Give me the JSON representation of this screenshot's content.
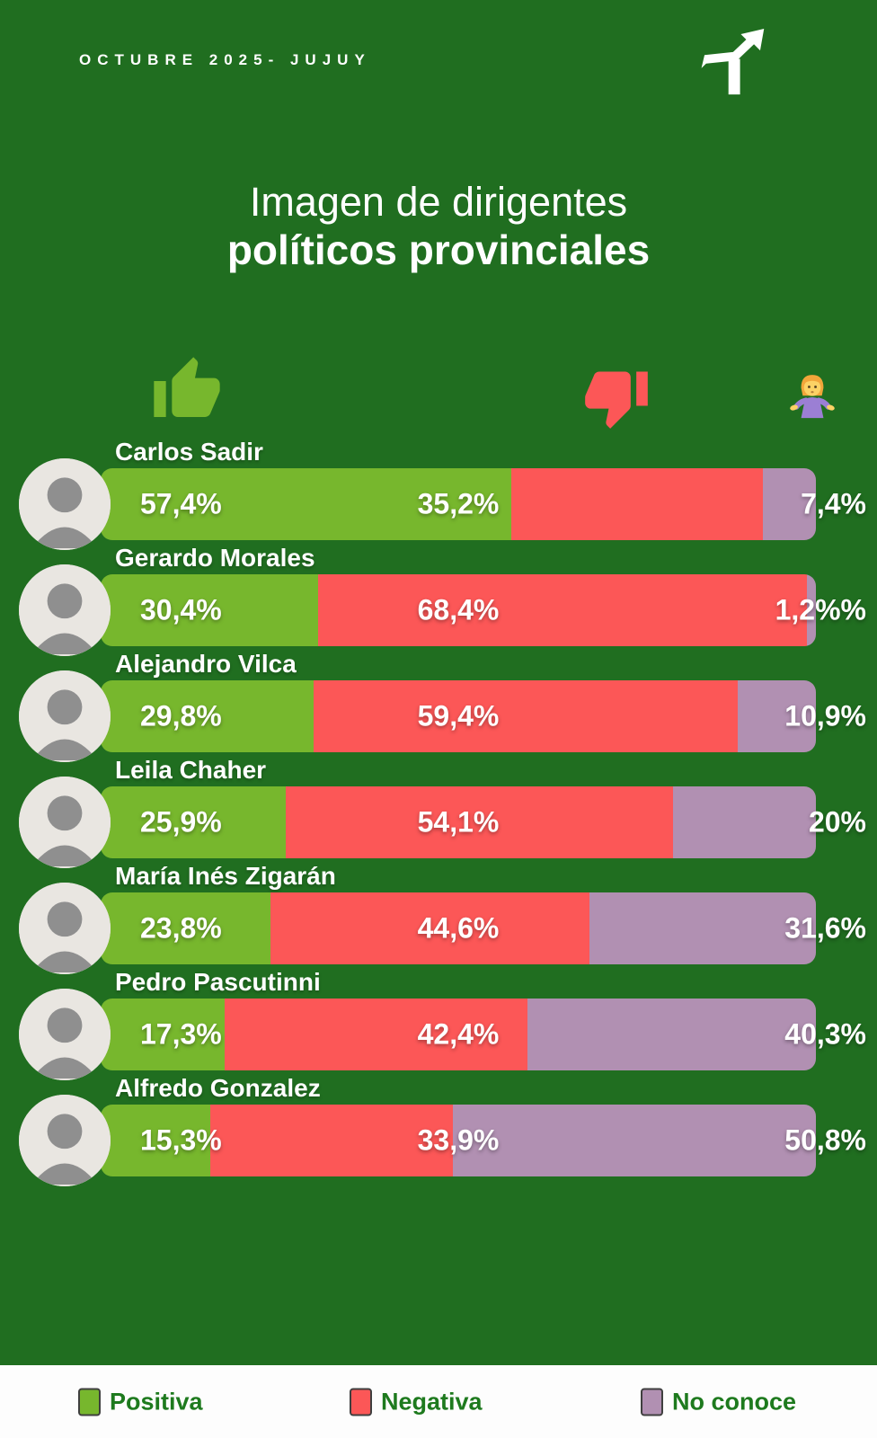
{
  "header": {
    "date_label": "OCTUBRE 2025- JUJUY",
    "logo_icon": "trend-arrow-logo"
  },
  "title": {
    "line1": "Imagen de dirigentes",
    "line2": "políticos provinciales"
  },
  "column_icons": {
    "positive": "thumbs-up-icon",
    "negative": "thumbs-down-icon",
    "unknown": "person-shrugging-icon"
  },
  "colors": {
    "background": "#206e20",
    "positive": "#77b72d",
    "negative": "#fc5757",
    "unknown": "#b190b2",
    "text": "#ffffff",
    "legend_text": "#1e7a1e",
    "legend_strip": "#fdfdfd"
  },
  "chart_data": {
    "type": "bar",
    "orientation": "horizontal",
    "stacked": true,
    "title": "Imagen de dirigentes políticos provinciales",
    "period": "OCTUBRE 2025- JUJUY",
    "unit": "%",
    "series_keys": [
      "positive",
      "negative",
      "unknown"
    ],
    "legend": [
      {
        "key": "positive",
        "label": "Positiva",
        "color": "#77b72d"
      },
      {
        "key": "negative",
        "label": "Negativa",
        "color": "#fc5757"
      },
      {
        "key": "unknown",
        "label": "No conoce",
        "color": "#b190b2"
      }
    ],
    "rows": [
      {
        "name": "Carlos Sadir",
        "positive": 57.4,
        "negative": 35.2,
        "unknown": 7.4,
        "labels": {
          "positive": "57,4%",
          "negative": "35,2%",
          "unknown": "7,4%"
        }
      },
      {
        "name": "Gerardo Morales",
        "positive": 30.4,
        "negative": 68.4,
        "unknown": 1.2,
        "labels": {
          "positive": "30,4%",
          "negative": "68,4%",
          "unknown": "1,2%%"
        }
      },
      {
        "name": "Alejandro Vilca",
        "positive": 29.8,
        "negative": 59.4,
        "unknown": 10.9,
        "labels": {
          "positive": "29,8%",
          "negative": "59,4%",
          "unknown": "10,9%"
        }
      },
      {
        "name": "Leila Chaher",
        "positive": 25.9,
        "negative": 54.1,
        "unknown": 20,
        "labels": {
          "positive": "25,9%",
          "negative": "54,1%",
          "unknown": "20%"
        }
      },
      {
        "name": "María Inés Zigarán",
        "positive": 23.8,
        "negative": 44.6,
        "unknown": 31.6,
        "labels": {
          "positive": "23,8%",
          "negative": "44,6%",
          "unknown": "31,6%"
        }
      },
      {
        "name": "Pedro Pascutinni",
        "positive": 17.3,
        "negative": 42.4,
        "unknown": 40.3,
        "labels": {
          "positive": "17,3%",
          "negative": "42,4%",
          "unknown": "40,3%"
        }
      },
      {
        "name": "Alfredo Gonzalez",
        "positive": 15.3,
        "negative": 33.9,
        "unknown": 50.8,
        "labels": {
          "positive": "15,3%",
          "negative": "33,9%",
          "unknown": "50,8%"
        }
      }
    ]
  }
}
